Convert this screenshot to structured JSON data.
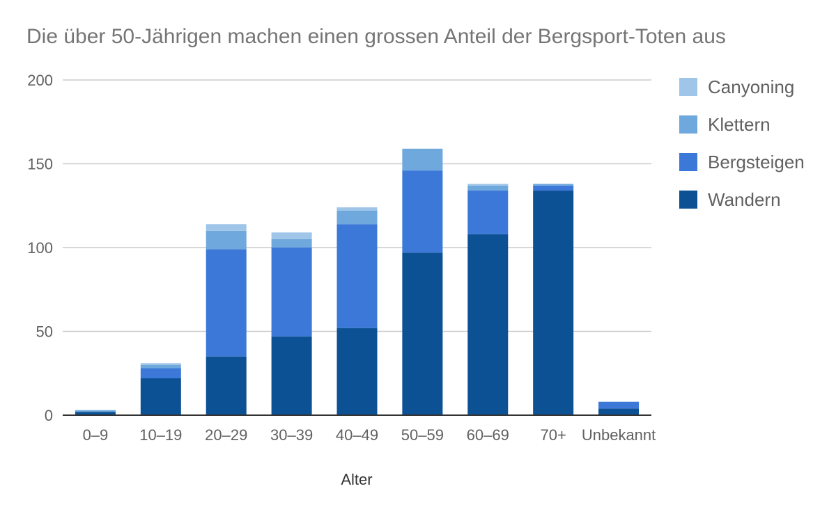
{
  "chart_data": {
    "type": "bar",
    "stacked": true,
    "title": "Die über 50-Jährigen machen einen grossen Anteil der Bergsport-Toten aus",
    "xlabel": "Alter",
    "ylabel": "",
    "ylim": [
      0,
      200
    ],
    "yticks": [
      0,
      50,
      100,
      150,
      200
    ],
    "grid": true,
    "legend_position": "right",
    "categories": [
      "0–9",
      "10–19",
      "20–29",
      "30–39",
      "40–49",
      "50–59",
      "60–69",
      "70+",
      "Unbekannt"
    ],
    "series": [
      {
        "name": "Wandern",
        "color": "#0d5195",
        "values": [
          2,
          22,
          35,
          47,
          52,
          97,
          108,
          134,
          4
        ]
      },
      {
        "name": "Bergsteigen",
        "color": "#3c78d8",
        "values": [
          0,
          6,
          64,
          53,
          62,
          49,
          26,
          3,
          4
        ]
      },
      {
        "name": "Klettern",
        "color": "#6fa8dc",
        "values": [
          1,
          2,
          11,
          5,
          8,
          13,
          3,
          1,
          0
        ]
      },
      {
        "name": "Canyoning",
        "color": "#9fc5e8",
        "values": [
          0,
          1,
          4,
          4,
          2,
          0,
          1,
          0,
          0
        ]
      }
    ]
  }
}
